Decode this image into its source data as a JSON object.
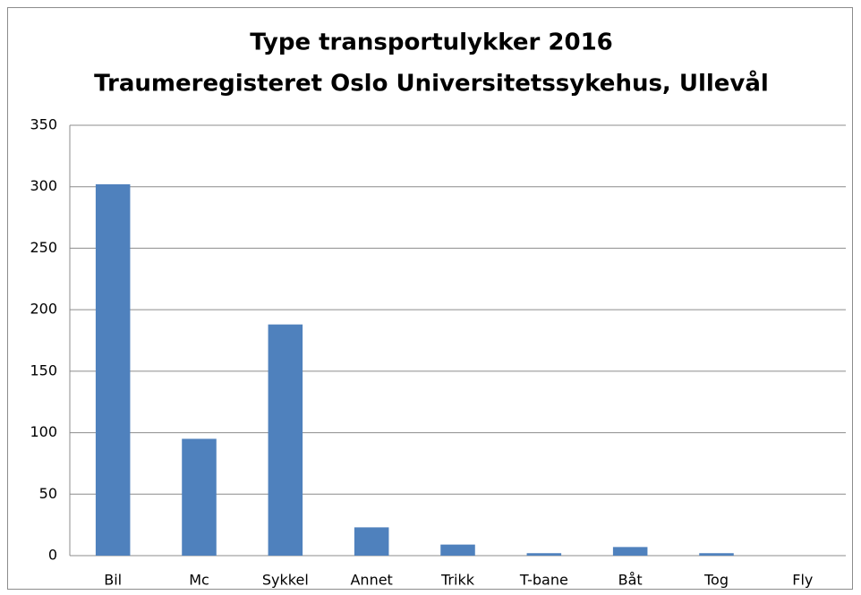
{
  "chart_data": {
    "type": "bar",
    "title": "Type transportulykker 2016",
    "subtitle": "Traumeregisteret Oslo Universitetssykehus, Ullevål",
    "categories": [
      "Bil",
      "Mc",
      "Sykkel",
      "Annet",
      "Trikk",
      "T-bane",
      "Båt",
      "Tog",
      "Fly"
    ],
    "values": [
      302,
      95,
      188,
      23,
      9,
      2,
      7,
      2,
      0
    ],
    "color": "#4f81bd",
    "ylim": [
      0,
      350
    ],
    "yticks": [
      0,
      50,
      100,
      150,
      200,
      250,
      300,
      350
    ],
    "grid": true
  }
}
